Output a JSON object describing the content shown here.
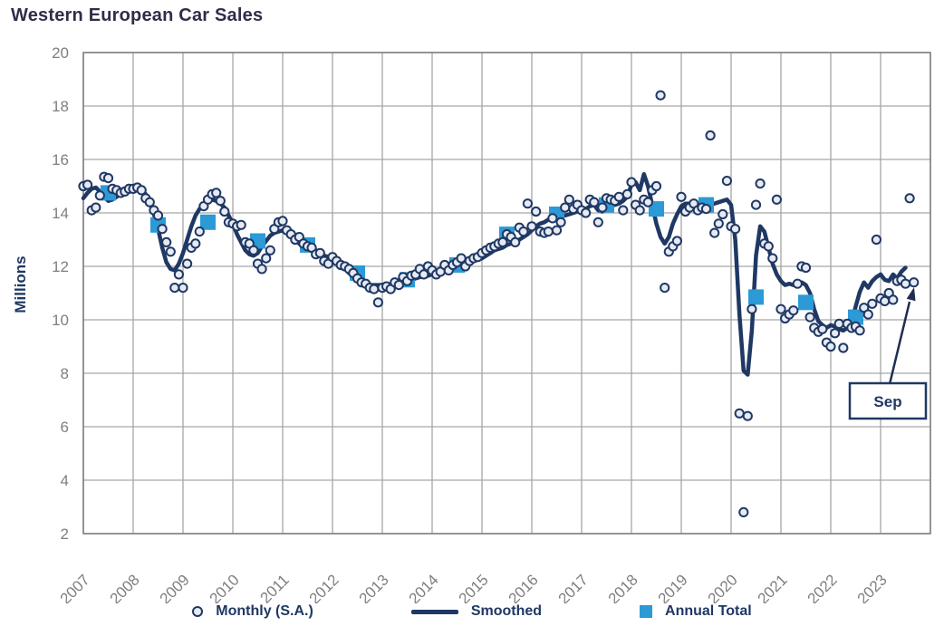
{
  "title": "Western European Car Sales",
  "annotation": {
    "label": "Sep",
    "points_to": "final monthly value",
    "value": 11.4
  },
  "legend": {
    "items": [
      {
        "label": "Monthly (S.A.)",
        "marker": "circle"
      },
      {
        "label": "Smoothed",
        "marker": "line"
      },
      {
        "label": "Annual Total",
        "marker": "square"
      }
    ]
  },
  "colors": {
    "navy": "#1f3864",
    "light_blue": "#2b9ad6",
    "circle_fill": "#e7eaf3",
    "grid": "#a6a6a6",
    "border": "#808080",
    "tick_text": "#7f7f7f",
    "title_text": "#2e2e4a"
  },
  "chart_data": {
    "type": "line",
    "title": "Western European Car Sales",
    "ylabel": "Millions",
    "ylim": [
      2,
      20
    ],
    "y_ticks": [
      20,
      18,
      16,
      14,
      12,
      10,
      8,
      6,
      4,
      2
    ],
    "x_years": [
      "2007",
      "2008",
      "2009",
      "2010",
      "2011",
      "2012",
      "2013",
      "2014",
      "2015",
      "2016",
      "2017",
      "2018",
      "2019",
      "2020",
      "2021",
      "2022",
      "2023"
    ],
    "grid": true,
    "legend_position": "bottom",
    "start_year": 2007,
    "series": [
      {
        "name": "Monthly (S.A.)",
        "style": "scatter",
        "start": "2007-01",
        "end": "2023-09",
        "values": [
          15.0,
          15.05,
          14.1,
          14.2,
          14.65,
          15.35,
          15.3,
          14.9,
          14.85,
          14.75,
          14.8,
          14.9,
          14.9,
          14.95,
          14.85,
          14.55,
          14.4,
          14.1,
          13.9,
          13.4,
          12.9,
          12.55,
          11.2,
          11.7,
          11.2,
          12.1,
          12.7,
          12.85,
          13.3,
          14.25,
          14.5,
          14.7,
          14.75,
          14.45,
          14.05,
          13.65,
          13.6,
          13.5,
          13.55,
          12.9,
          12.85,
          12.6,
          12.1,
          11.9,
          12.3,
          12.6,
          13.4,
          13.65,
          13.7,
          13.35,
          13.2,
          13.0,
          13.1,
          12.85,
          12.75,
          12.7,
          12.45,
          12.5,
          12.2,
          12.1,
          12.35,
          12.2,
          12.05,
          12.0,
          11.9,
          11.75,
          11.55,
          11.4,
          11.35,
          11.2,
          11.15,
          10.65,
          11.2,
          11.25,
          11.15,
          11.4,
          11.3,
          11.6,
          11.45,
          11.65,
          11.7,
          11.9,
          11.7,
          12.0,
          11.85,
          11.7,
          11.8,
          12.05,
          11.85,
          12.05,
          12.15,
          12.3,
          12.0,
          12.2,
          12.3,
          12.35,
          12.5,
          12.6,
          12.7,
          12.75,
          12.85,
          12.9,
          13.2,
          13.1,
          12.9,
          13.45,
          13.3,
          14.35,
          13.5,
          14.05,
          13.3,
          13.25,
          13.3,
          13.8,
          13.35,
          13.65,
          14.2,
          14.5,
          14.15,
          14.3,
          14.1,
          14.0,
          14.5,
          14.4,
          13.65,
          14.2,
          14.55,
          14.5,
          14.45,
          14.6,
          14.1,
          14.7,
          15.15,
          14.3,
          14.1,
          14.5,
          14.4,
          14.85,
          15.0,
          18.4,
          11.2,
          12.55,
          12.75,
          12.95,
          14.6,
          14.05,
          14.2,
          14.35,
          14.1,
          14.2,
          14.15,
          16.9,
          13.25,
          13.6,
          13.95,
          15.2,
          13.5,
          13.4,
          6.5,
          2.8,
          6.4,
          10.4,
          14.3,
          15.1,
          12.85,
          12.75,
          12.3,
          14.5,
          10.4,
          10.05,
          10.2,
          10.35,
          11.35,
          12.0,
          11.95,
          10.1,
          9.7,
          9.55,
          9.65,
          9.15,
          9.0,
          9.5,
          9.85,
          8.95,
          9.85,
          9.7,
          9.75,
          9.6,
          10.45,
          10.2,
          10.6,
          13.0,
          10.8,
          10.7,
          11.0,
          10.75,
          11.45,
          11.5,
          11.35,
          14.55,
          11.4
        ]
      },
      {
        "name": "Smoothed",
        "style": "line",
        "start": "2007-01",
        "end": "2023-07",
        "values": [
          14.55,
          14.75,
          14.9,
          14.95,
          14.8,
          14.6,
          14.45,
          14.5,
          14.6,
          14.7,
          14.8,
          14.9,
          14.95,
          14.95,
          14.9,
          14.7,
          14.4,
          13.95,
          13.4,
          12.7,
          12.15,
          11.9,
          11.85,
          12.1,
          12.5,
          13.0,
          13.5,
          13.9,
          14.15,
          14.3,
          14.4,
          14.5,
          14.45,
          14.35,
          14.2,
          13.9,
          13.6,
          13.2,
          12.9,
          12.6,
          12.45,
          12.4,
          12.5,
          12.75,
          12.95,
          13.15,
          13.25,
          13.3,
          13.35,
          13.3,
          13.15,
          13.0,
          12.85,
          12.7,
          12.65,
          12.65,
          12.6,
          12.5,
          12.4,
          12.35,
          12.25,
          12.15,
          12.0,
          11.9,
          11.75,
          11.6,
          11.5,
          11.4,
          11.35,
          11.3,
          11.3,
          11.3,
          11.3,
          11.25,
          11.3,
          11.3,
          11.35,
          11.4,
          11.45,
          11.5,
          11.55,
          11.6,
          11.6,
          11.65,
          11.7,
          11.75,
          11.8,
          11.85,
          11.9,
          11.95,
          12.0,
          12.0,
          12.1,
          12.15,
          12.2,
          12.25,
          12.3,
          12.4,
          12.5,
          12.6,
          12.65,
          12.7,
          12.8,
          12.85,
          12.9,
          13.0,
          13.1,
          13.2,
          13.35,
          13.5,
          13.6,
          13.65,
          13.75,
          13.85,
          14.0,
          13.95,
          13.9,
          13.95,
          14.0,
          14.05,
          14.05,
          14.15,
          14.25,
          14.3,
          14.1,
          14.05,
          14.15,
          14.25,
          14.3,
          14.35,
          14.45,
          14.6,
          15.05,
          15.15,
          14.85,
          15.45,
          15.0,
          14.3,
          13.6,
          13.1,
          12.85,
          13.1,
          13.6,
          13.95,
          14.25,
          14.35,
          14.35,
          14.3,
          14.25,
          14.25,
          14.3,
          14.3,
          14.35,
          14.4,
          14.45,
          14.5,
          14.3,
          13.0,
          10.2,
          8.1,
          7.95,
          9.6,
          12.4,
          13.5,
          13.3,
          12.7,
          12.1,
          11.7,
          11.45,
          11.3,
          11.35,
          11.3,
          11.35,
          11.4,
          11.3,
          11.0,
          10.4,
          9.95,
          9.8,
          9.7,
          9.8,
          9.75,
          9.65,
          9.6,
          9.7,
          9.9,
          10.5,
          11.05,
          11.4,
          11.2,
          11.45,
          11.6,
          11.7,
          11.5,
          11.45,
          11.7,
          11.55,
          11.8,
          11.95
        ]
      },
      {
        "name": "Annual Total",
        "style": "square-markers",
        "years": [
          2007,
          2008,
          2009,
          2010,
          2011,
          2012,
          2013,
          2014,
          2015,
          2016,
          2017,
          2018,
          2019,
          2020,
          2021,
          2022
        ],
        "values": [
          14.75,
          13.55,
          13.65,
          12.95,
          12.8,
          11.75,
          11.5,
          12.05,
          13.2,
          13.95,
          14.3,
          14.15,
          14.3,
          10.85,
          10.65,
          10.1
        ]
      }
    ]
  }
}
